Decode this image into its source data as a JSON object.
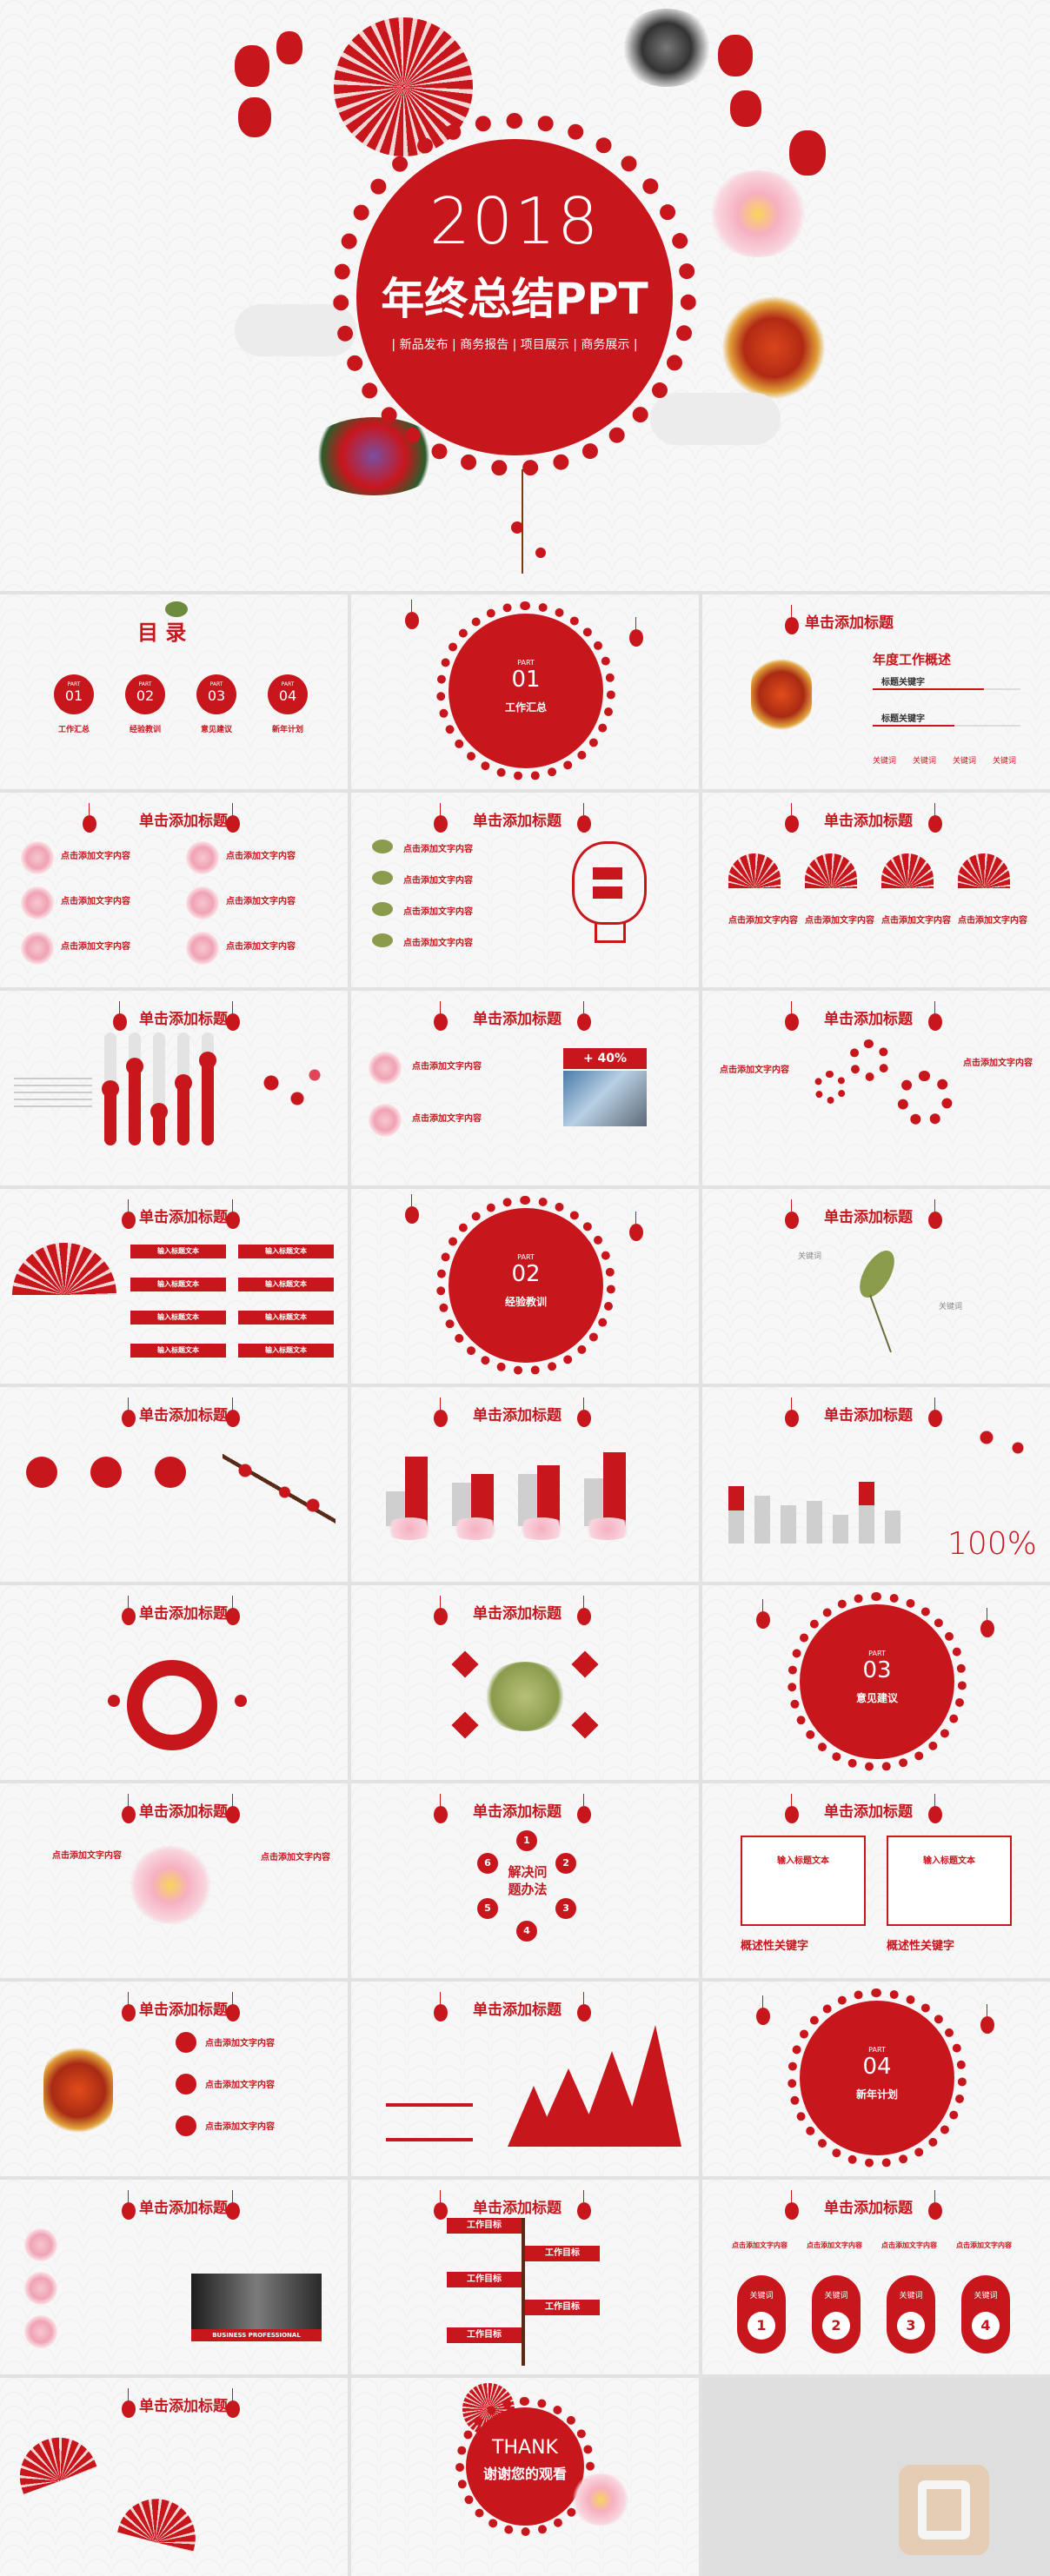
{
  "cover": {
    "year": "2018",
    "title": "年终总结PPT",
    "subtitle": "| 新品发布 | 商务报告 | 项目展示 | 商务展示 |"
  },
  "common": {
    "slide_title": "单击添加标题",
    "placeholder_text": "点击添加文字内容",
    "keyword": "关键词",
    "input_text": "输入标题文本"
  },
  "toc": {
    "title": "目  录",
    "items": [
      {
        "part": "PART",
        "num": "01",
        "label": "工作汇总"
      },
      {
        "part": "PART",
        "num": "02",
        "label": "经验教训"
      },
      {
        "part": "PART",
        "num": "03",
        "label": "意见建议"
      },
      {
        "part": "PART",
        "num": "04",
        "label": "新年计划"
      }
    ]
  },
  "sections": [
    {
      "part": "PART",
      "num": "01",
      "label": "工作汇总"
    },
    {
      "part": "PART",
      "num": "02",
      "label": "经验教训"
    },
    {
      "part": "PART",
      "num": "03",
      "label": "意见建议"
    },
    {
      "part": "PART",
      "num": "04",
      "label": "新年计划"
    }
  ],
  "overview": {
    "title": "年度工作概述",
    "kw1": "标题关键字",
    "kw2": "标题关键字",
    "kws": [
      "关键词",
      "关键词",
      "关键词",
      "关键词"
    ]
  },
  "percent_badge": "+ 40%",
  "problem_solving": {
    "line1": "解决问",
    "line2": "题办法",
    "nums": [
      "1",
      "2",
      "3",
      "4",
      "5",
      "6"
    ]
  },
  "summary_kw": [
    "概述性关键字",
    "概述性关键字"
  ],
  "thanks": {
    "en": "THANK",
    "cn": "谢谢您的观看"
  },
  "percent_big": "100%",
  "work_target": "工作目标",
  "business": "BUSINESS PROFESSIONAL",
  "steps": [
    "1",
    "2",
    "3",
    "4"
  ],
  "step_label": "关键词",
  "icons": {
    "wm": "watermark-icon"
  },
  "colors": {
    "accent": "#c8161d",
    "gray": "#cfcfcf",
    "bg": "#fafafa"
  }
}
